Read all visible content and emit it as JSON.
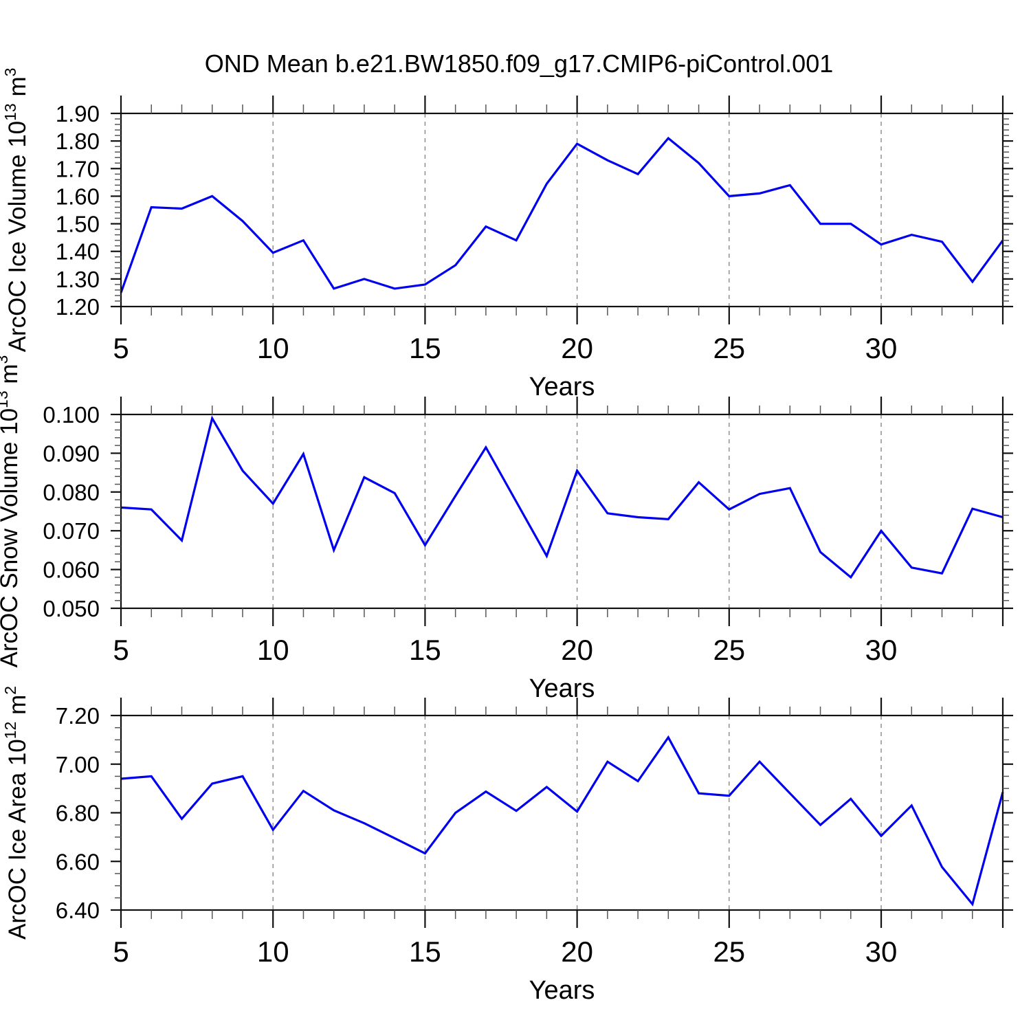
{
  "title": "OND Mean b.e21.BW1850.f09_g17.CMIP6-piControl.001",
  "chart_data": {
    "type": "line",
    "title": "OND Mean b.e21.BW1850.f09_g17.CMIP6-piControl.001",
    "xlabel": "Years",
    "legend": "none",
    "grid": "vertical-dashed-gridlines",
    "x": [
      5,
      6,
      7,
      8,
      9,
      10,
      11,
      12,
      13,
      14,
      15,
      16,
      17,
      18,
      19,
      20,
      21,
      22,
      23,
      24,
      25,
      26,
      27,
      28,
      29,
      30,
      31,
      32,
      33,
      34
    ],
    "x_range": [
      5,
      34
    ],
    "x_major_ticks": [
      5,
      10,
      15,
      20,
      25,
      30
    ],
    "x_minor_step": 1,
    "x_gridlines": [
      10,
      15,
      20,
      25,
      30
    ],
    "colors": {
      "line": "#0000ee",
      "axis": "#111111",
      "grid": "#7f7f7f",
      "minor_tick": "#555555"
    },
    "panels": [
      {
        "id": "ice-volume",
        "ylabel": "ArcOC Ice Volume 10^13 m^3",
        "y_tick_labels": [
          "1.20",
          "1.30",
          "1.40",
          "1.50",
          "1.60",
          "1.70",
          "1.80",
          "1.90"
        ],
        "ylim": [
          1.2,
          1.9
        ],
        "y_minor_step": 0.02,
        "values": [
          1.25,
          1.56,
          1.555,
          1.6,
          1.51,
          1.395,
          1.44,
          1.265,
          1.3,
          1.265,
          1.28,
          1.35,
          1.49,
          1.44,
          1.645,
          1.79,
          1.73,
          1.68,
          1.81,
          1.72,
          1.6,
          1.61,
          1.64,
          1.5,
          1.5,
          1.425,
          1.46,
          1.435,
          1.29,
          1.44
        ]
      },
      {
        "id": "snow-volume",
        "ylabel": "ArcOC Snow Volume 10^13 m^3",
        "y_tick_labels": [
          "0.050",
          "0.060",
          "0.070",
          "0.080",
          "0.090",
          "0.100"
        ],
        "ylim": [
          0.05,
          0.1
        ],
        "y_minor_step": 0.002,
        "values": [
          0.076,
          0.0755,
          0.0675,
          0.099,
          0.0855,
          0.077,
          0.0898,
          0.065,
          0.0838,
          0.0797,
          0.0663,
          0.079,
          0.0915,
          0.0775,
          0.0635,
          0.0855,
          0.0745,
          0.0735,
          0.073,
          0.0825,
          0.0755,
          0.0795,
          0.081,
          0.0645,
          0.058,
          0.07,
          0.0605,
          0.059,
          0.0757,
          0.0735
        ]
      },
      {
        "id": "ice-area",
        "ylabel": "ArcOC Ice Area 10^12 m^2",
        "y_tick_labels": [
          "6.40",
          "6.60",
          "6.80",
          "7.00",
          "7.20"
        ],
        "ylim": [
          6.4,
          7.2
        ],
        "y_minor_step": 0.05,
        "values": [
          6.94,
          6.95,
          6.775,
          6.92,
          6.95,
          6.73,
          6.89,
          6.81,
          6.757,
          6.695,
          6.633,
          6.8,
          6.887,
          6.808,
          6.906,
          6.805,
          7.01,
          6.93,
          7.11,
          6.88,
          6.87,
          7.01,
          6.88,
          6.75,
          6.857,
          6.705,
          6.83,
          6.577,
          6.424,
          6.885
        ]
      }
    ]
  }
}
